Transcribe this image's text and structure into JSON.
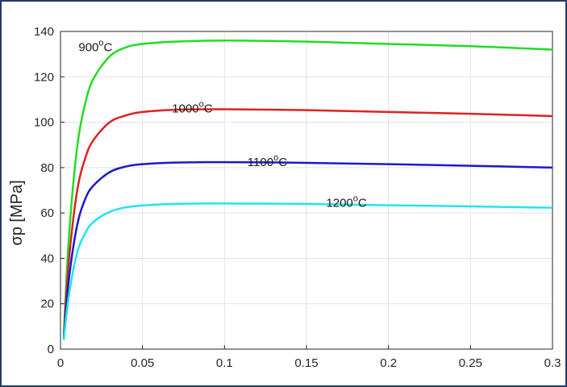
{
  "chart_data": {
    "type": "line",
    "title": "",
    "xlabel": "",
    "ylabel": "σp [MPa]",
    "xlim": [
      0,
      0.3
    ],
    "ylim": [
      0,
      140
    ],
    "x_ticks": [
      "0",
      "0.05",
      "0.1",
      "0.15",
      "0.2",
      "0.25",
      "0.3"
    ],
    "y_ticks": [
      "0",
      "20",
      "40",
      "60",
      "80",
      "100",
      "120",
      "140"
    ],
    "grid": true,
    "colors": {
      "900": "#22dd22",
      "1000": "#dd2222",
      "1100": "#1a1acc",
      "1200": "#22e5ee"
    },
    "series": [
      {
        "name": "900oC",
        "temp": "900",
        "unit": "C",
        "deg": "o",
        "x": [
          0.002,
          0.005,
          0.01,
          0.015,
          0.02,
          0.03,
          0.04,
          0.05,
          0.07,
          0.1,
          0.15,
          0.2,
          0.25,
          0.3
        ],
        "y": [
          6,
          48,
          88,
          108,
          119,
          129,
          133,
          134.5,
          135.5,
          136,
          135.5,
          134.5,
          133.5,
          132
        ]
      },
      {
        "name": "1000oC",
        "temp": "1000",
        "unit": "C",
        "deg": "o",
        "x": [
          0.002,
          0.005,
          0.01,
          0.015,
          0.02,
          0.03,
          0.04,
          0.05,
          0.07,
          0.1,
          0.15,
          0.2,
          0.25,
          0.3
        ],
        "y": [
          5,
          38,
          69,
          84,
          92,
          100,
          103,
          104.5,
          105.5,
          105.7,
          105.3,
          104.5,
          103.7,
          102.7
        ]
      },
      {
        "name": "1100oC",
        "temp": "1100",
        "unit": "C",
        "deg": "o",
        "x": [
          0.002,
          0.005,
          0.01,
          0.015,
          0.02,
          0.03,
          0.04,
          0.05,
          0.07,
          0.1,
          0.15,
          0.2,
          0.25,
          0.3
        ],
        "y": [
          4.5,
          30,
          54,
          66,
          72,
          78,
          80.5,
          81.5,
          82.2,
          82.4,
          82.1,
          81.5,
          80.8,
          80
        ]
      },
      {
        "name": "1200oC",
        "temp": "1200",
        "unit": "C",
        "deg": "o",
        "x": [
          0.002,
          0.005,
          0.01,
          0.015,
          0.02,
          0.03,
          0.04,
          0.05,
          0.07,
          0.1,
          0.15,
          0.2,
          0.25,
          0.3
        ],
        "y": [
          4,
          23,
          42,
          51,
          56,
          60.5,
          62.5,
          63.3,
          64,
          64.2,
          64,
          63.4,
          62.9,
          62.3
        ]
      }
    ],
    "annotations": [
      {
        "series": "900",
        "x": 0.011,
        "y": 133
      },
      {
        "series": "1000",
        "x": 0.068,
        "y": 106
      },
      {
        "series": "1100",
        "x": 0.114,
        "y": 82.5
      },
      {
        "series": "1200",
        "x": 0.162,
        "y": 64.5
      }
    ]
  }
}
